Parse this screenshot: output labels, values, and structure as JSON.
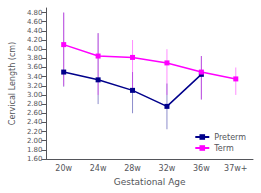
{
  "chart_data": {
    "type": "line",
    "xlabel": "Gestational Age",
    "ylabel": "Cervical Length (cm)",
    "categories": [
      "20w",
      "24w",
      "28w",
      "32w",
      "36w",
      "37w+"
    ],
    "series": [
      {
        "name": "Preterm",
        "color": "#00008B",
        "marker": "square",
        "values": [
          3.5,
          3.33,
          3.1,
          2.75,
          3.45,
          null
        ],
        "yerr_upper": [
          4.8,
          4.35,
          3.5,
          3.25,
          3.85,
          null
        ],
        "yerr_lower": [
          3.18,
          2.8,
          2.6,
          2.25,
          2.9,
          null
        ]
      },
      {
        "name": "Term",
        "color": "#FF00FF",
        "marker": "square",
        "values": [
          4.1,
          3.85,
          3.82,
          3.7,
          3.5,
          3.35
        ],
        "yerr_upper": [
          4.8,
          4.35,
          4.2,
          4.0,
          3.85,
          3.6
        ],
        "yerr_lower": [
          3.2,
          3.0,
          3.15,
          3.0,
          2.9,
          3.0
        ]
      }
    ],
    "ylim": [
      1.6,
      4.9
    ],
    "yticks": [
      {
        "value": 1.6,
        "label": "1.60"
      },
      {
        "value": 1.8,
        "label": "1.80"
      },
      {
        "value": 2.0,
        "label": "2.00"
      },
      {
        "value": 2.2,
        "label": "2.20"
      },
      {
        "value": 2.4,
        "label": "2.40"
      },
      {
        "value": 2.6,
        "label": "2.60"
      },
      {
        "value": 2.8,
        "label": "2.80"
      },
      {
        "value": 3.0,
        "label": "3.00"
      },
      {
        "value": 3.2,
        "label": "3.20"
      },
      {
        "value": 3.4,
        "label": "3.40"
      },
      {
        "value": 3.6,
        "label": "3.60"
      },
      {
        "value": 3.8,
        "label": "3.80"
      },
      {
        "value": 4.0,
        "label": "4.00"
      },
      {
        "value": 4.2,
        "label": "4.20"
      },
      {
        "value": 4.4,
        "label": "4.40"
      },
      {
        "value": 4.6,
        "label": "4.60"
      },
      {
        "value": 4.8,
        "label": "4.80"
      }
    ],
    "grid": false,
    "legend": "lower right"
  }
}
